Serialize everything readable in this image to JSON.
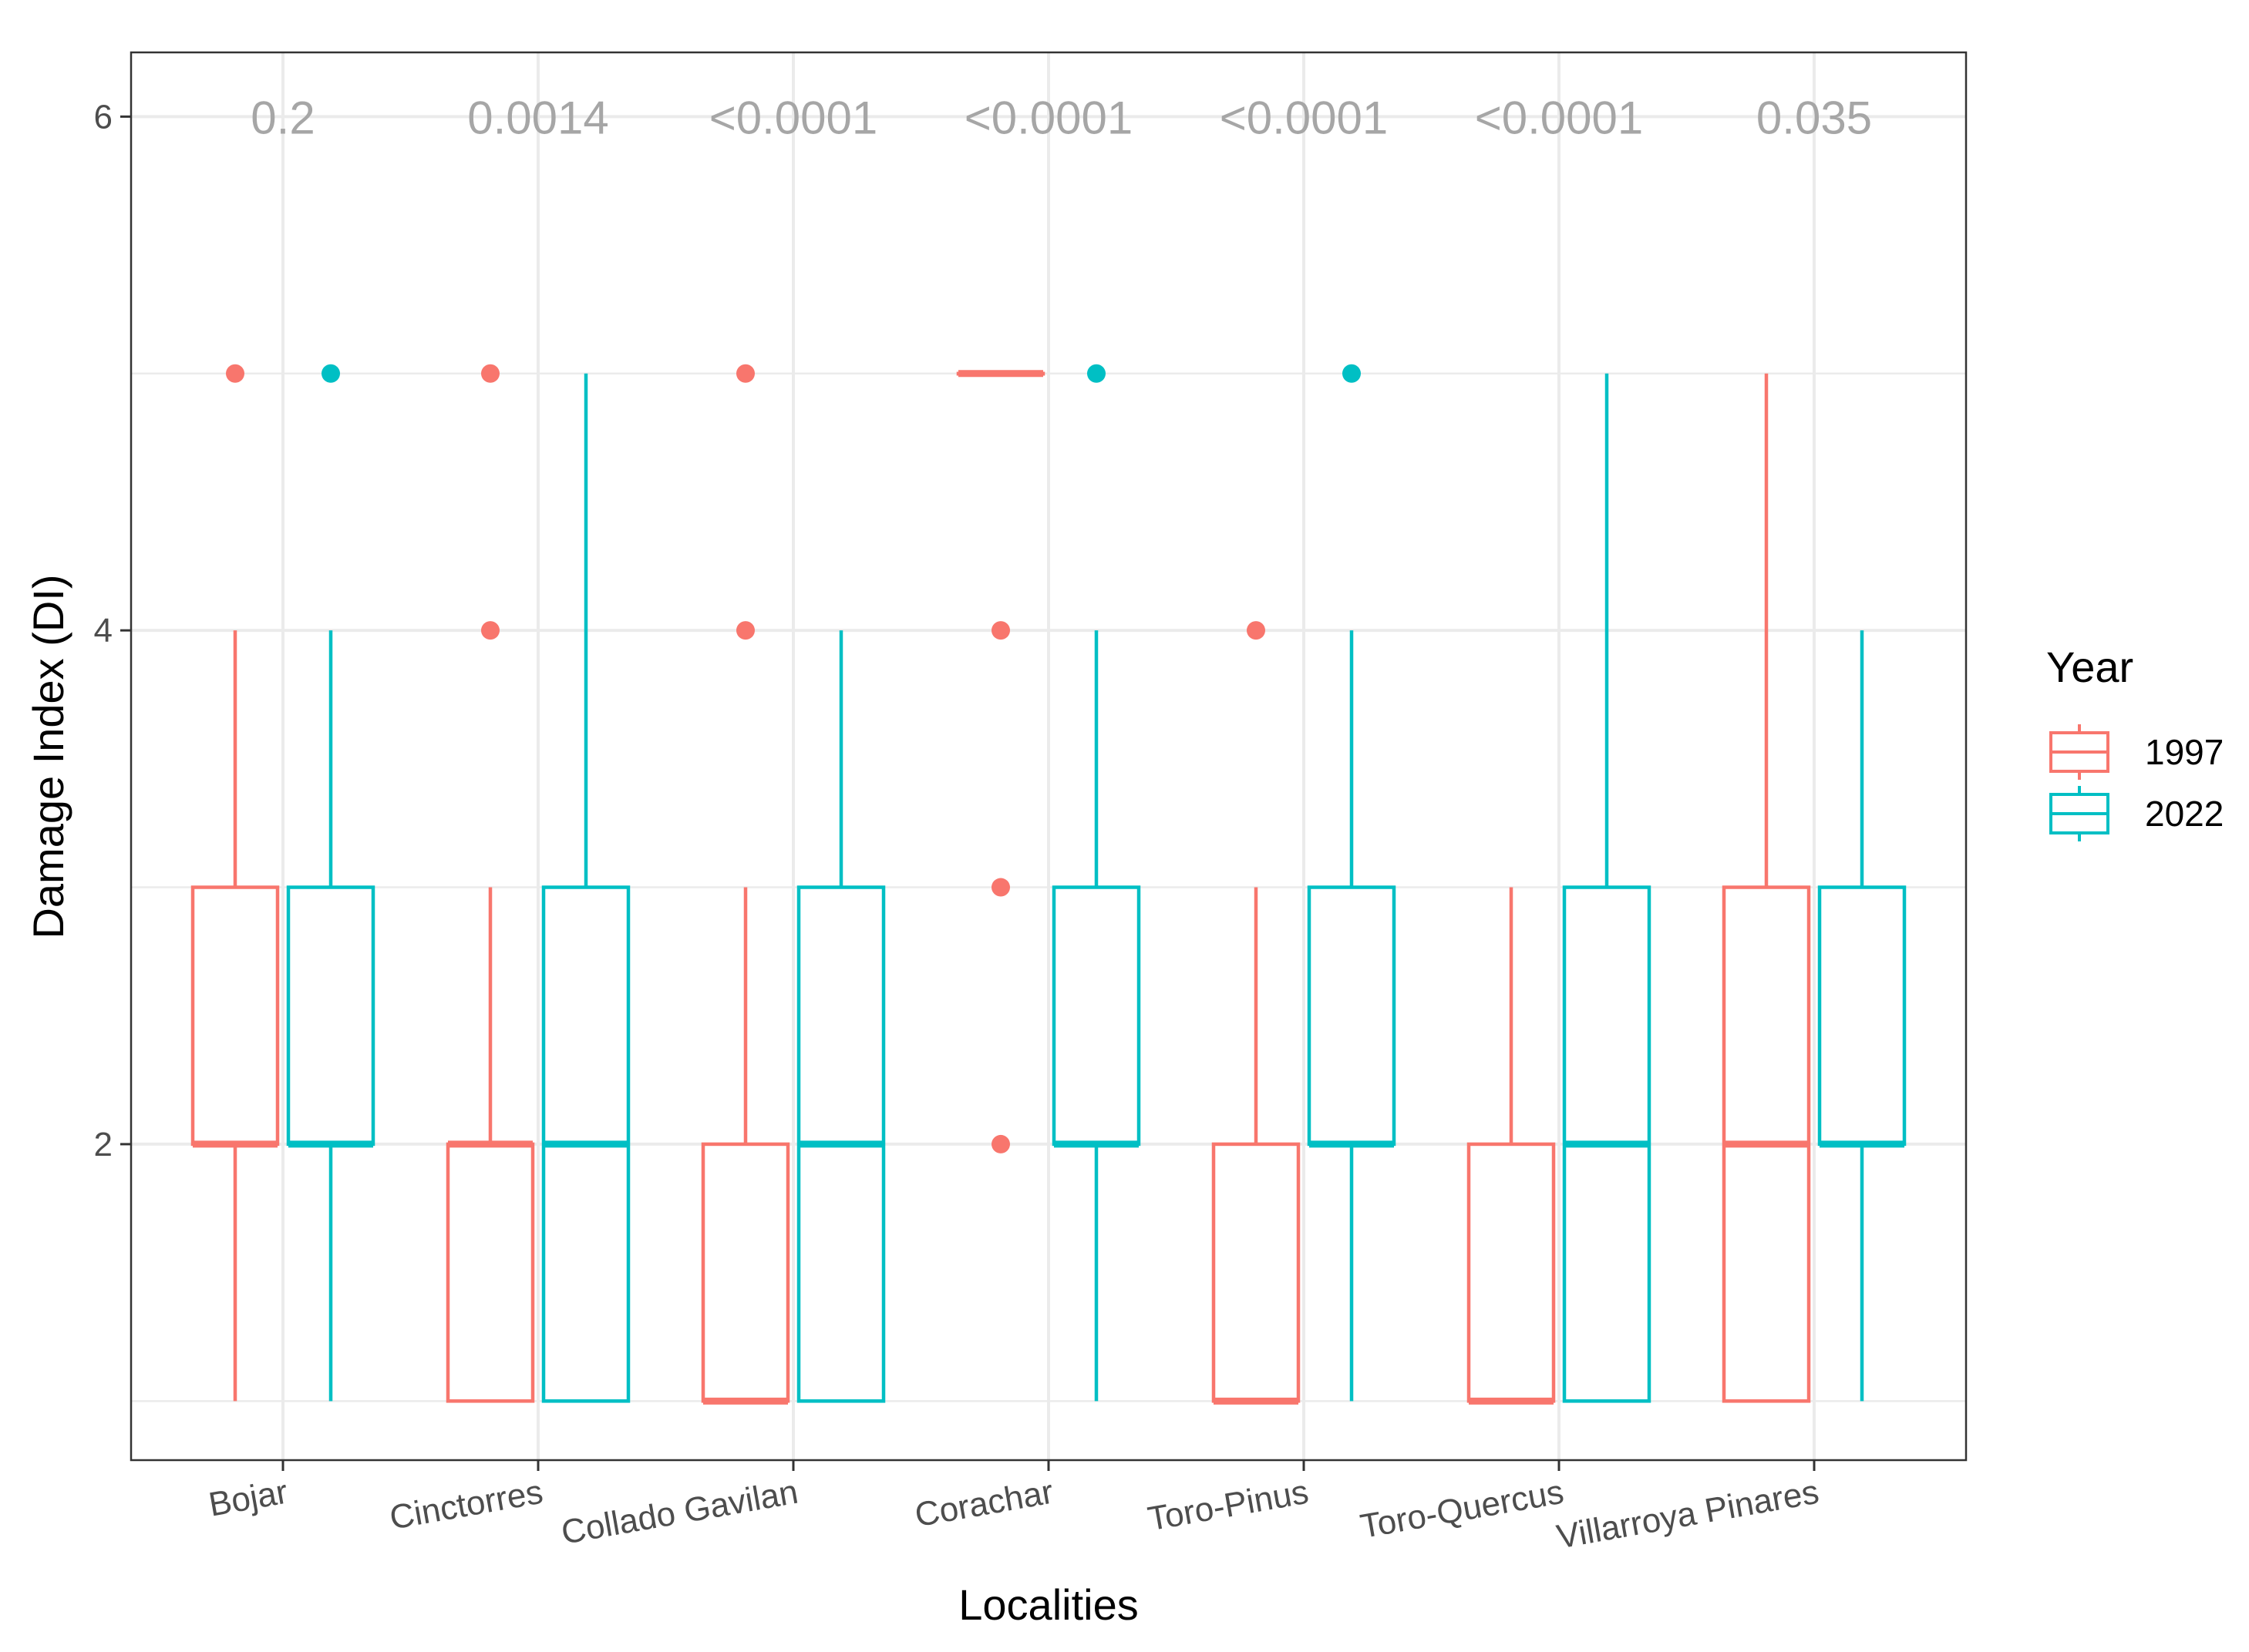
{
  "chart_data": {
    "type": "boxplot",
    "xlabel": "Localities",
    "ylabel": "Damage Index (DI)",
    "ylim": [
      0.77,
      6.25
    ],
    "yticks": [
      2,
      4,
      6
    ],
    "legend": {
      "title": "Year",
      "position": "right"
    },
    "series": [
      {
        "name": "1997",
        "color": "#F8766D"
      },
      {
        "name": "2022",
        "color": "#00BFC4"
      }
    ],
    "categories": [
      "Bojar",
      "Cinctorres",
      "Collado Gavilan",
      "Corachar",
      "Toro-Pinus",
      "Toro-Quercus",
      "Villarroya Pinares"
    ],
    "p_values": [
      "0.2",
      "0.0014",
      "<0.0001",
      "<0.0001",
      "<0.0001",
      "<0.0001",
      "0.035"
    ],
    "boxes": [
      {
        "category": "Bojar",
        "year": "1997",
        "min": 1,
        "q1": 2,
        "median": 2,
        "q3": 3,
        "max": 4,
        "outliers": [
          5
        ]
      },
      {
        "category": "Bojar",
        "year": "2022",
        "min": 1,
        "q1": 2,
        "median": 2,
        "q3": 3,
        "max": 4,
        "outliers": [
          5
        ]
      },
      {
        "category": "Cinctorres",
        "year": "1997",
        "min": 1,
        "q1": 1,
        "median": 2,
        "q3": 2,
        "max": 3,
        "outliers": [
          4,
          5
        ]
      },
      {
        "category": "Cinctorres",
        "year": "2022",
        "min": 1,
        "q1": 1,
        "median": 2,
        "q3": 3,
        "max": 5,
        "outliers": []
      },
      {
        "category": "Collado Gavilan",
        "year": "1997",
        "min": 1,
        "q1": 1,
        "median": 1,
        "q3": 2,
        "max": 3,
        "outliers": [
          4,
          5
        ]
      },
      {
        "category": "Collado Gavilan",
        "year": "2022",
        "min": 1,
        "q1": 1,
        "median": 2,
        "q3": 3,
        "max": 4,
        "outliers": []
      },
      {
        "category": "Corachar",
        "year": "1997",
        "min": 5,
        "q1": 5,
        "median": 5,
        "q3": 5,
        "max": 5,
        "outliers": [
          2,
          3,
          4
        ]
      },
      {
        "category": "Corachar",
        "year": "2022",
        "min": 1,
        "q1": 2,
        "median": 2,
        "q3": 3,
        "max": 4,
        "outliers": [
          5
        ]
      },
      {
        "category": "Toro-Pinus",
        "year": "1997",
        "min": 1,
        "q1": 1,
        "median": 1,
        "q3": 2,
        "max": 3,
        "outliers": [
          4
        ]
      },
      {
        "category": "Toro-Pinus",
        "year": "2022",
        "min": 1,
        "q1": 2,
        "median": 2,
        "q3": 3,
        "max": 4,
        "outliers": [
          5
        ]
      },
      {
        "category": "Toro-Quercus",
        "year": "1997",
        "min": 1,
        "q1": 1,
        "median": 1,
        "q3": 2,
        "max": 3,
        "outliers": []
      },
      {
        "category": "Toro-Quercus",
        "year": "2022",
        "min": 1,
        "q1": 1,
        "median": 2,
        "q3": 3,
        "max": 5,
        "outliers": []
      },
      {
        "category": "Villarroya Pinares",
        "year": "1997",
        "min": 1,
        "q1": 1,
        "median": 2,
        "q3": 3,
        "max": 5,
        "outliers": []
      },
      {
        "category": "Villarroya Pinares",
        "year": "2022",
        "min": 1,
        "q1": 2,
        "median": 2,
        "q3": 3,
        "max": 4,
        "outliers": []
      }
    ]
  }
}
